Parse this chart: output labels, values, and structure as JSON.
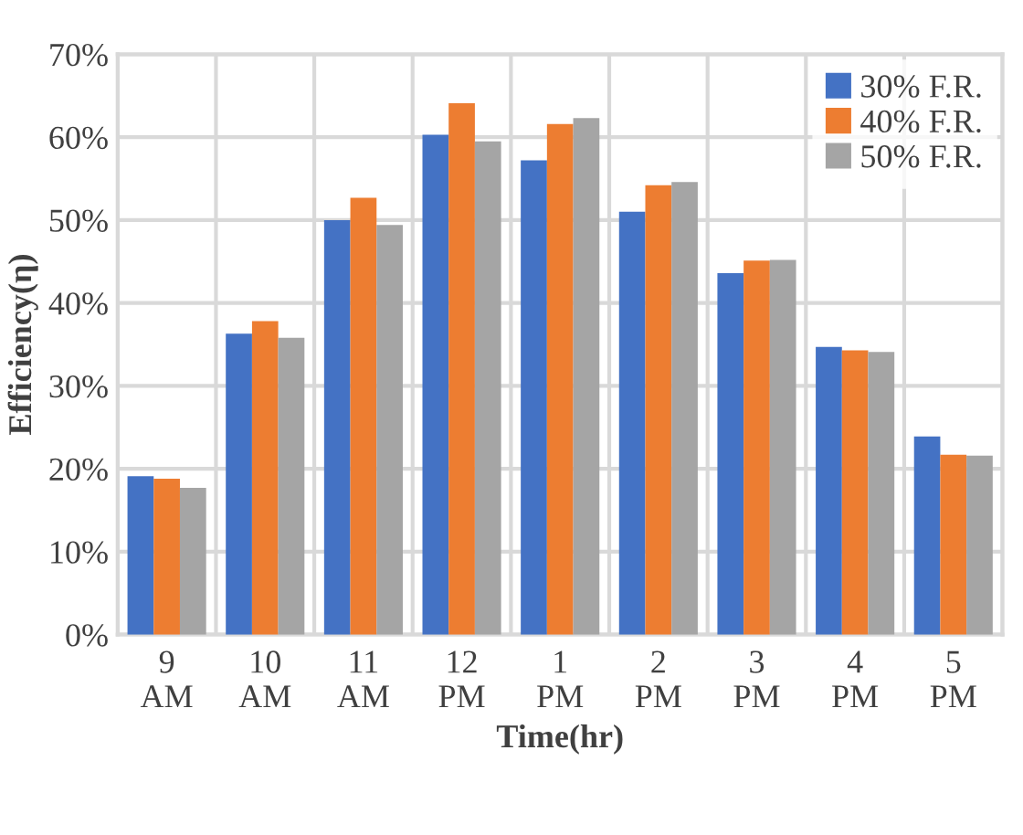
{
  "chart_data": {
    "type": "bar",
    "xlabel": "Time(hr)",
    "ylabel": "Efficiency(η)",
    "categories": [
      "9\nAM",
      "10\nAM",
      "11\nAM",
      "12\nPM",
      "1\nPM",
      "2\nPM",
      "3\nPM",
      "4\nPM",
      "5\nPM"
    ],
    "series": [
      {
        "name": "30% F.R.",
        "color": "#4472c4",
        "values": [
          19.1,
          36.3,
          50.0,
          60.3,
          57.2,
          51.0,
          43.6,
          34.7,
          23.9
        ]
      },
      {
        "name": "40% F.R.",
        "color": "#ed7d31",
        "values": [
          18.8,
          37.8,
          52.7,
          64.1,
          61.6,
          54.2,
          45.1,
          34.3,
          21.7
        ]
      },
      {
        "name": "50% F.R.",
        "color": "#a5a5a5",
        "values": [
          17.7,
          35.8,
          49.4,
          59.5,
          62.3,
          54.6,
          45.2,
          34.1,
          21.6
        ]
      }
    ],
    "ylim": [
      0,
      70
    ],
    "yticks": [
      {
        "value": 0,
        "label": "0%"
      },
      {
        "value": 10,
        "label": "10%"
      },
      {
        "value": 20,
        "label": "20%"
      },
      {
        "value": 30,
        "label": "30%"
      },
      {
        "value": 40,
        "label": "40%"
      },
      {
        "value": 50,
        "label": "50%"
      },
      {
        "value": 60,
        "label": "60%"
      },
      {
        "value": 70,
        "label": "70%"
      }
    ],
    "grid": true,
    "legend": "top right"
  }
}
